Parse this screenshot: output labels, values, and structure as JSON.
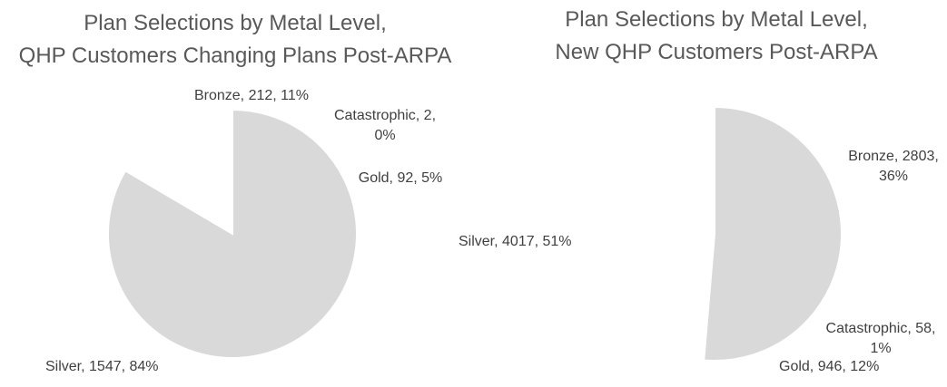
{
  "page": {
    "background": "#FFFFFF",
    "title_color": "#595959",
    "label_color": "#404040",
    "slice_border_color": "#FFFFFF"
  },
  "chart_data": [
    {
      "type": "pie",
      "title": "Plan Selections by Metal Level, QHP Customers Changing Plans Post-ARPA",
      "title_lines": [
        "Plan Selections by Metal Level,",
        "QHP Customers Changing Plans Post-ARPA"
      ],
      "categories": [
        "Bronze",
        "Catastrophic",
        "Gold",
        "Silver"
      ],
      "values": [
        212,
        2,
        92,
        1547
      ],
      "percents": [
        "11%",
        "0%",
        "5%",
        "84%"
      ],
      "slice_labels": [
        "Bronze, 212, 11%",
        "Catastrophic, 2, 0%",
        "Gold, 92, 5%",
        "Silver, 1547, 84%"
      ],
      "colors": [
        "#BB8D20",
        "#C3584A",
        "#FBBF3E",
        "#D9D9D9"
      ],
      "start_angle": "top",
      "direction": "clockwise",
      "legend": "none",
      "labels_position": "outside"
    },
    {
      "type": "pie",
      "title": "Plan Selections by Metal Level, New QHP Customers Post-ARPA",
      "title_lines": [
        "Plan Selections by Metal Level,",
        "New QHP Customers Post-ARPA"
      ],
      "categories": [
        "Bronze",
        "Catastrophic",
        "Gold",
        "Silver"
      ],
      "values": [
        2803,
        58,
        946,
        4017
      ],
      "percents": [
        "36%",
        "1%",
        "12%",
        "51%"
      ],
      "slice_labels": [
        "Bronze, 2803, 36%",
        "Catastrophic, 58, 1%",
        "Gold, 946, 12%",
        "Silver, 4017, 51%"
      ],
      "colors": [
        "#BB8D20",
        "#C3584A",
        "#FBBF3E",
        "#D9D9D9"
      ],
      "start_angle": "top",
      "direction": "clockwise",
      "legend": "none",
      "labels_position": "outside"
    }
  ]
}
